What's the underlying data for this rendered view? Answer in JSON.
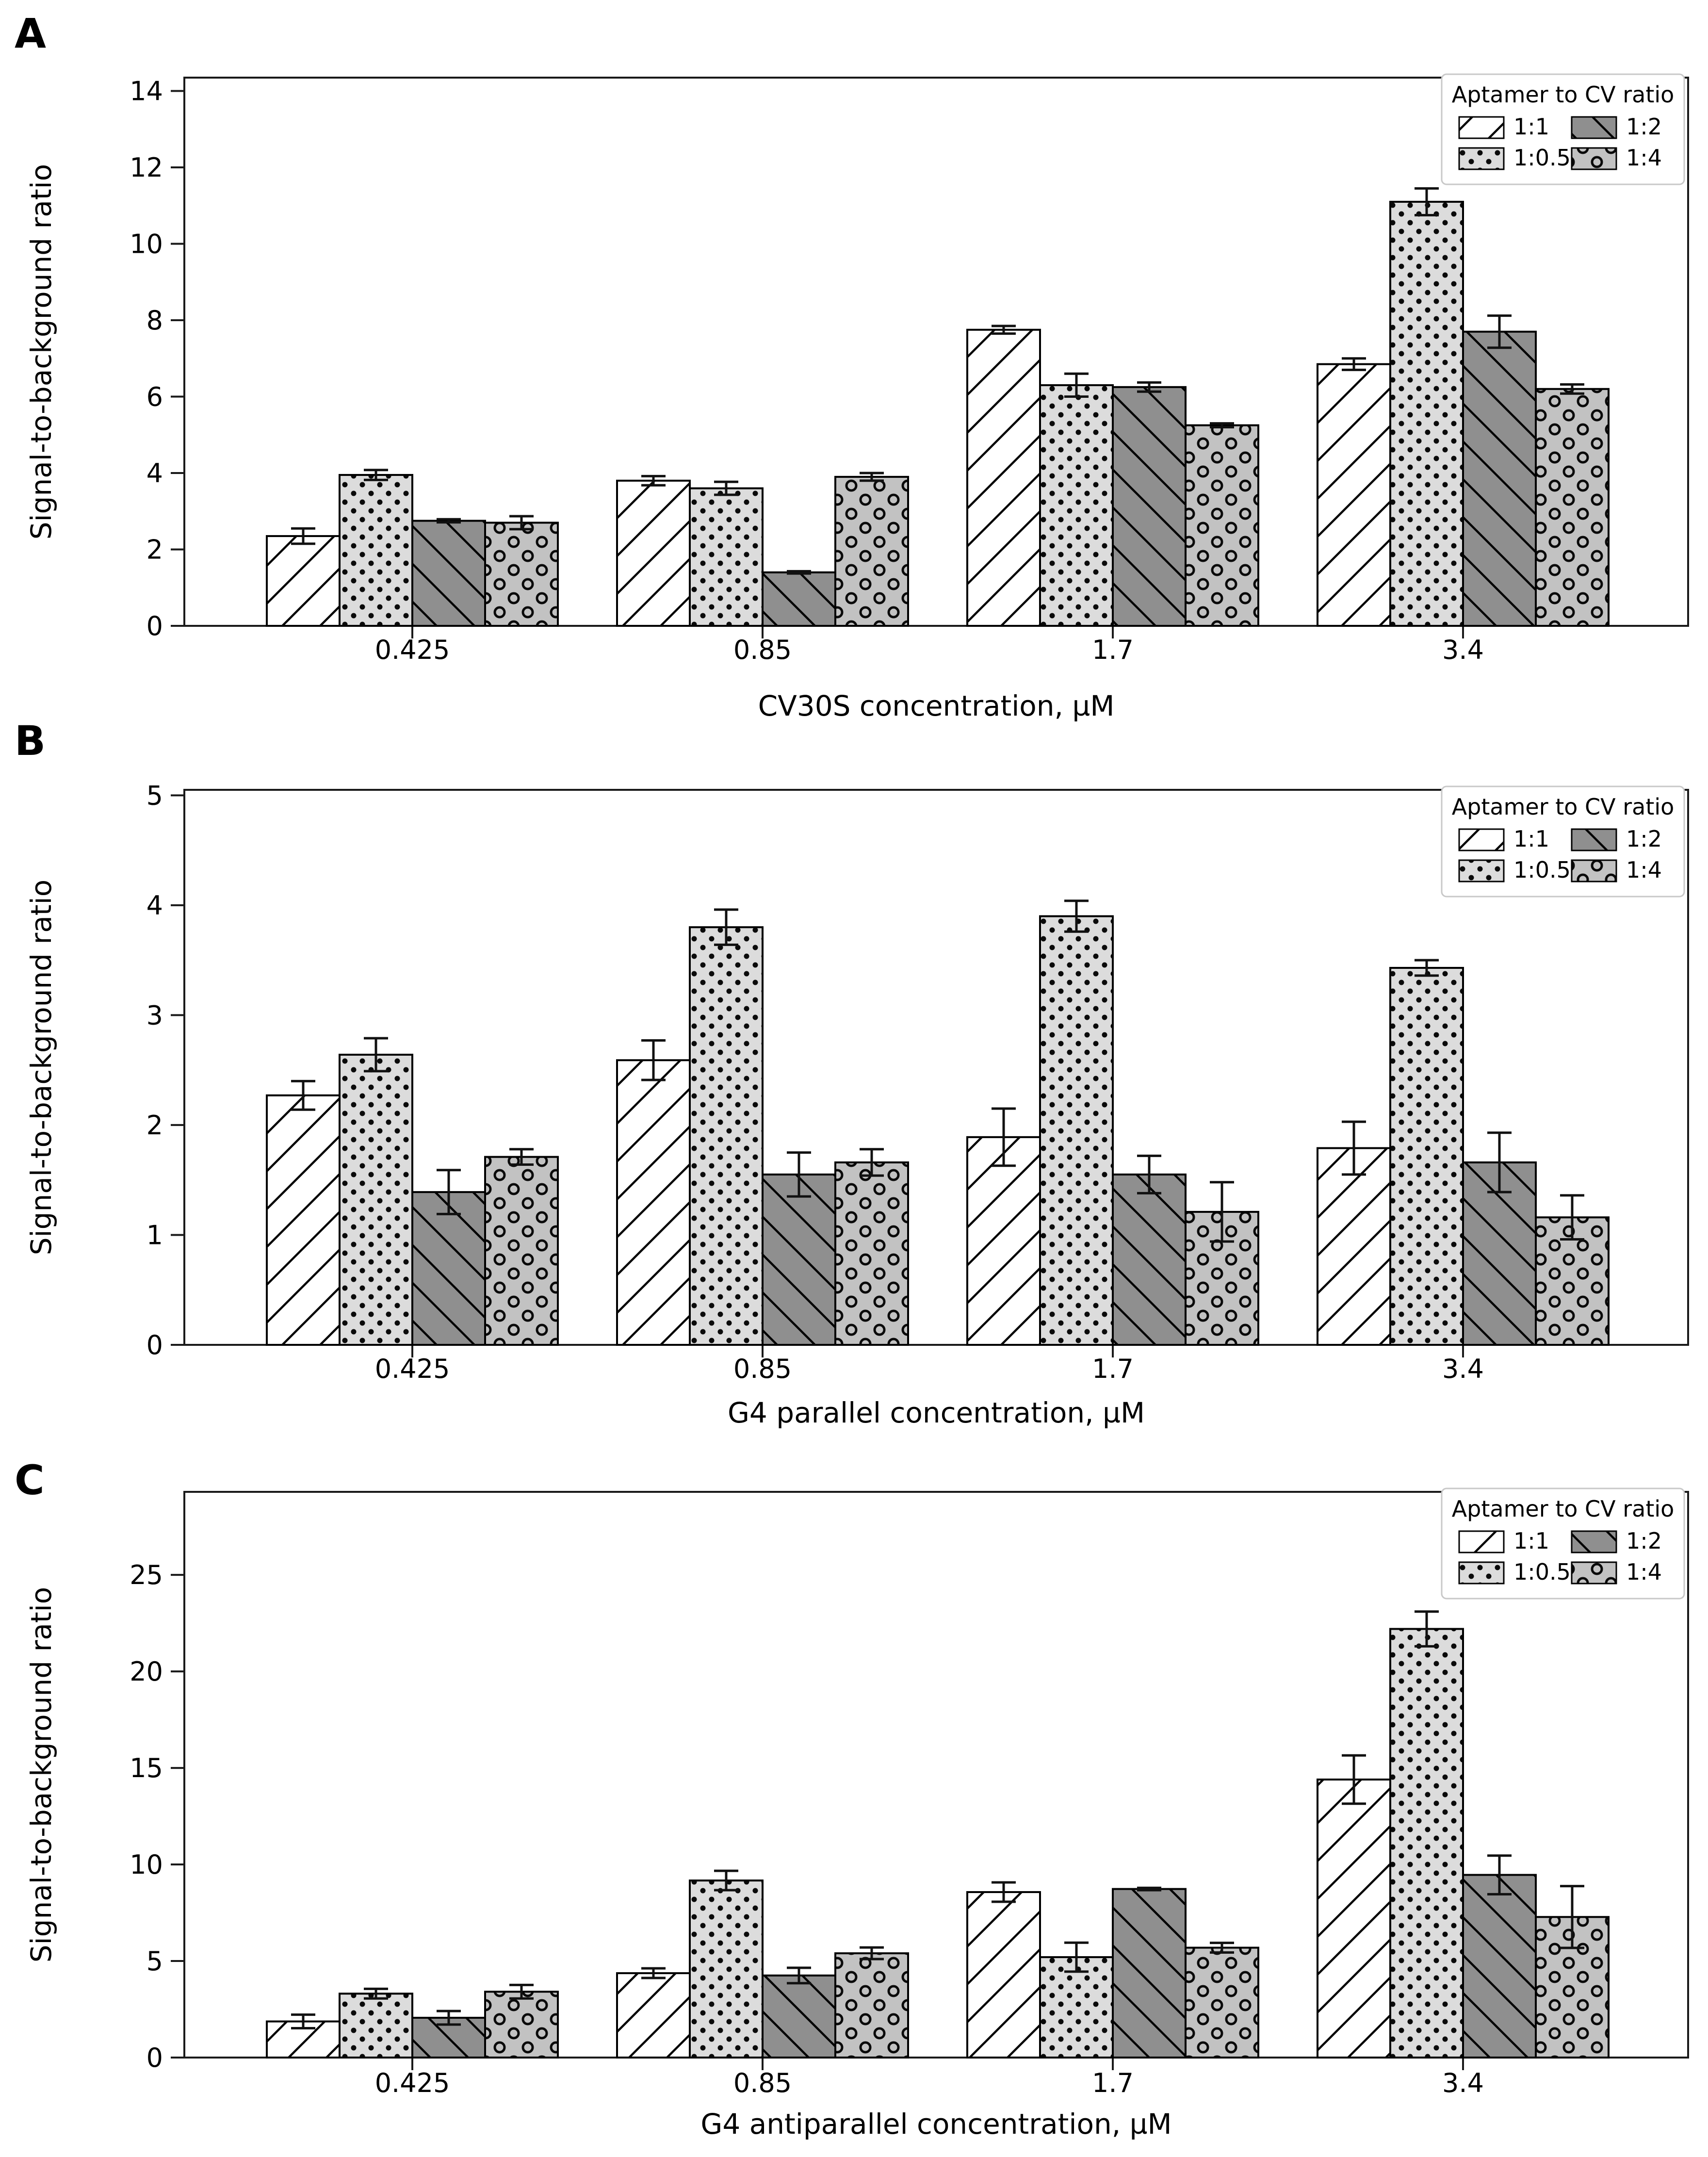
{
  "figure": {
    "background": "#ffffff",
    "panel_letters": [
      "A",
      "B",
      "C"
    ]
  },
  "colors": {
    "bar_edge": "#000000",
    "axis": "#1a1a1a",
    "text": "#000000",
    "legend_border": "#c8c8c8",
    "background": "#ffffff",
    "fill_1_1": "#ffffff",
    "fill_1_05": "#dcdcdc",
    "fill_1_2": "#8f8f8f",
    "fill_1_4": "#c2c2c2"
  },
  "chart_data": [
    {
      "type": "bar",
      "panel": "A",
      "title": "",
      "xlabel": "CV30S concentration, µM",
      "ylabel": "Signal-to-background ratio",
      "categories": [
        "0.425",
        "0.85",
        "1.7",
        "3.4"
      ],
      "yticks": [
        0,
        2,
        4,
        6,
        8,
        10,
        12,
        14
      ],
      "ylim": [
        0,
        14.35
      ],
      "grid": false,
      "legend": {
        "title": "Aptamer to CV ratio",
        "position": "upper right",
        "ncol": 2
      },
      "series": [
        {
          "name": "1:1",
          "hatch": "/",
          "fill": "#ffffff",
          "values": [
            2.35,
            3.8,
            7.75,
            6.85
          ],
          "errors": [
            0.2,
            0.12,
            0.1,
            0.15
          ]
        },
        {
          "name": "1:0.5",
          "hatch": ".",
          "fill": "#dcdcdc",
          "values": [
            3.95,
            3.6,
            6.3,
            11.1
          ],
          "errors": [
            0.13,
            0.17,
            0.3,
            0.35
          ]
        },
        {
          "name": "1:2",
          "hatch": "\\",
          "fill": "#8f8f8f",
          "values": [
            2.75,
            1.4,
            6.25,
            7.7
          ],
          "errors": [
            0.04,
            0.03,
            0.12,
            0.42
          ]
        },
        {
          "name": "1:4",
          "hatch": "o",
          "fill": "#c2c2c2",
          "values": [
            2.7,
            3.9,
            5.25,
            6.2
          ],
          "errors": [
            0.17,
            0.1,
            0.05,
            0.12
          ]
        }
      ]
    },
    {
      "type": "bar",
      "panel": "B",
      "title": "",
      "xlabel": "G4 parallel concentration, µM",
      "ylabel": "Signal-to-background ratio",
      "categories": [
        "0.425",
        "0.85",
        "1.7",
        "3.4"
      ],
      "yticks": [
        0,
        1,
        2,
        3,
        4,
        5
      ],
      "ylim": [
        0,
        5.05
      ],
      "grid": false,
      "legend": {
        "title": "Aptamer to CV ratio",
        "position": "upper right",
        "ncol": 2
      },
      "series": [
        {
          "name": "1:1",
          "hatch": "/",
          "fill": "#ffffff",
          "values": [
            2.27,
            2.59,
            1.89,
            1.79
          ],
          "errors": [
            0.13,
            0.18,
            0.26,
            0.24
          ]
        },
        {
          "name": "1:0.5",
          "hatch": ".",
          "fill": "#dcdcdc",
          "values": [
            2.64,
            3.8,
            3.9,
            3.43
          ],
          "errors": [
            0.15,
            0.16,
            0.14,
            0.07
          ]
        },
        {
          "name": "1:2",
          "hatch": "\\",
          "fill": "#8f8f8f",
          "values": [
            1.39,
            1.55,
            1.55,
            1.66
          ],
          "errors": [
            0.2,
            0.2,
            0.17,
            0.27
          ]
        },
        {
          "name": "1:4",
          "hatch": "o",
          "fill": "#c2c2c2",
          "values": [
            1.71,
            1.66,
            1.21,
            1.16
          ],
          "errors": [
            0.07,
            0.12,
            0.27,
            0.2
          ]
        }
      ]
    },
    {
      "type": "bar",
      "panel": "C",
      "title": "",
      "xlabel": "G4 antiparallel concentration, µM",
      "ylabel": "Signal-to-background ratio",
      "categories": [
        "0.425",
        "0.85",
        "1.7",
        "3.4"
      ],
      "yticks": [
        0,
        5,
        10,
        15,
        20,
        25
      ],
      "ylim": [
        0,
        29.3
      ],
      "grid": false,
      "legend": {
        "title": "Aptamer to CV ratio",
        "position": "upper right",
        "ncol": 2
      },
      "series": [
        {
          "name": "1:1",
          "hatch": "/",
          "fill": "#ffffff",
          "values": [
            1.87,
            4.37,
            8.57,
            14.4
          ],
          "errors": [
            0.35,
            0.25,
            0.5,
            1.25
          ]
        },
        {
          "name": "1:0.5",
          "hatch": ".",
          "fill": "#dcdcdc",
          "values": [
            3.31,
            9.17,
            5.2,
            22.2
          ],
          "errors": [
            0.25,
            0.5,
            0.75,
            0.9
          ]
        },
        {
          "name": "1:2",
          "hatch": "\\",
          "fill": "#8f8f8f",
          "values": [
            2.06,
            4.25,
            8.73,
            9.46
          ],
          "errors": [
            0.35,
            0.4,
            0.06,
            1.0
          ]
        },
        {
          "name": "1:4",
          "hatch": "o",
          "fill": "#c2c2c2",
          "values": [
            3.41,
            5.4,
            5.69,
            7.28
          ],
          "errors": [
            0.35,
            0.3,
            0.25,
            1.6
          ]
        }
      ]
    }
  ]
}
